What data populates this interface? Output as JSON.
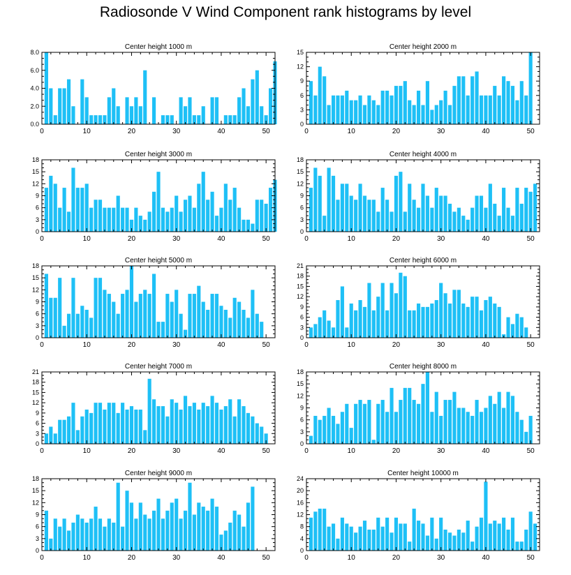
{
  "title": "Radiosonde V Wind Component rank histograms by level",
  "bar_color": "#1ec0f6",
  "chart_data": [
    {
      "type": "bar",
      "title": "Center height 1000 m",
      "xlabel": "",
      "ylabel": "",
      "xlim": [
        0,
        52
      ],
      "ylim": [
        0,
        8
      ],
      "xticks": [
        0,
        10,
        20,
        30,
        40,
        50
      ],
      "yticks": [
        0,
        2,
        4,
        6,
        8
      ],
      "ytick_labels": [
        "0.0",
        "2.0",
        "4.0",
        "6.0",
        "8.0"
      ],
      "values": [
        8,
        4,
        1,
        4,
        4,
        5,
        2,
        0,
        5,
        3,
        1,
        1,
        1,
        1,
        3,
        4,
        2,
        0,
        3,
        2,
        3,
        2,
        6,
        0,
        3,
        0,
        1,
        1,
        1,
        0,
        3,
        2,
        3,
        1,
        1,
        2,
        0,
        3,
        3,
        0,
        1,
        1,
        1,
        3,
        4,
        2,
        5,
        6,
        2,
        1,
        4,
        7
      ]
    },
    {
      "type": "bar",
      "title": "Center height 2000 m",
      "xlabel": "",
      "ylabel": "",
      "xlim": [
        0,
        52
      ],
      "ylim": [
        0,
        15
      ],
      "xticks": [
        0,
        10,
        20,
        30,
        40,
        50
      ],
      "yticks": [
        0,
        3,
        6,
        9,
        12,
        15
      ],
      "ytick_labels": [
        "0",
        "3",
        "6",
        "9",
        "12",
        "15"
      ],
      "values": [
        9,
        6,
        12,
        10,
        4,
        6,
        6,
        6,
        7,
        5,
        5,
        6,
        4,
        6,
        5,
        4,
        7,
        7,
        6,
        8,
        8,
        9,
        5,
        4,
        7,
        4,
        9,
        3,
        4,
        5,
        7,
        4,
        8,
        10,
        10,
        6,
        10,
        11,
        6,
        6,
        6,
        8,
        6,
        10,
        9,
        8,
        5,
        9,
        6,
        15
      ]
    },
    {
      "type": "bar",
      "title": "Center height 3000 m",
      "xlabel": "",
      "ylabel": "",
      "xlim": [
        0,
        52
      ],
      "ylim": [
        0,
        18
      ],
      "xticks": [
        0,
        10,
        20,
        30,
        40,
        50
      ],
      "yticks": [
        0,
        3,
        6,
        9,
        12,
        15,
        18
      ],
      "ytick_labels": [
        "0",
        "3",
        "6",
        "9",
        "12",
        "15",
        "18"
      ],
      "values": [
        11,
        14,
        12,
        6,
        11,
        5,
        16,
        11,
        11,
        12,
        6,
        8,
        8,
        6,
        6,
        6,
        9,
        6,
        6,
        3,
        6,
        4,
        3,
        5,
        10,
        15,
        6,
        5,
        6,
        9,
        5,
        8,
        9,
        6,
        12,
        15,
        8,
        10,
        4,
        6,
        12,
        8,
        11,
        6,
        3,
        3,
        2,
        8,
        8,
        7,
        11,
        13
      ]
    },
    {
      "type": "bar",
      "title": "Center height 4000 m",
      "xlabel": "",
      "ylabel": "",
      "xlim": [
        0,
        52
      ],
      "ylim": [
        0,
        18
      ],
      "xticks": [
        0,
        10,
        20,
        30,
        40,
        50
      ],
      "yticks": [
        0,
        3,
        6,
        9,
        12,
        15,
        18
      ],
      "ytick_labels": [
        "0",
        "3",
        "6",
        "9",
        "12",
        "15",
        "18"
      ],
      "values": [
        11,
        16,
        14,
        4,
        16,
        14,
        8,
        12,
        12,
        9,
        8,
        12,
        9,
        8,
        8,
        5,
        11,
        8,
        5,
        14,
        15,
        5,
        12,
        8,
        6,
        12,
        9,
        6,
        11,
        9,
        9,
        7,
        5,
        6,
        4,
        3,
        6,
        9,
        9,
        6,
        12,
        7,
        4,
        11,
        6,
        4,
        11,
        7,
        11,
        10,
        12
      ]
    },
    {
      "type": "bar",
      "title": "Center height 5000 m",
      "xlabel": "",
      "ylabel": "",
      "xlim": [
        0,
        52
      ],
      "ylim": [
        0,
        18
      ],
      "xticks": [
        0,
        10,
        20,
        30,
        40,
        50
      ],
      "yticks": [
        0,
        3,
        6,
        9,
        12,
        15,
        18
      ],
      "ytick_labels": [
        "0",
        "3",
        "6",
        "9",
        "12",
        "15",
        "18"
      ],
      "values": [
        16,
        10,
        10,
        15,
        3,
        6,
        15,
        6,
        8,
        7,
        5,
        15,
        15,
        12,
        11,
        9,
        6,
        11,
        12,
        18,
        9,
        11,
        12,
        11,
        16,
        4,
        4,
        11,
        9,
        12,
        6,
        2,
        11,
        11,
        13,
        9,
        7,
        11,
        11,
        8,
        7,
        5,
        10,
        9,
        7,
        5,
        12,
        6,
        4
      ]
    },
    {
      "type": "bar",
      "title": "Center height 6000 m",
      "xlabel": "",
      "ylabel": "",
      "xlim": [
        0,
        52
      ],
      "ylim": [
        0,
        21
      ],
      "xticks": [
        0,
        10,
        20,
        30,
        40,
        50
      ],
      "yticks": [
        0,
        3,
        6,
        9,
        12,
        15,
        18,
        21
      ],
      "ytick_labels": [
        "0",
        "3",
        "6",
        "9",
        "12",
        "15",
        "18",
        "21"
      ],
      "values": [
        3,
        4,
        6,
        8,
        5,
        3,
        11,
        15,
        3,
        10,
        8,
        11,
        9,
        16,
        8,
        12,
        16,
        8,
        16,
        13,
        19,
        18,
        8,
        8,
        10,
        9,
        9,
        10,
        11,
        16,
        13,
        10,
        14,
        14,
        10,
        9,
        12,
        12,
        8,
        11,
        12,
        10,
        9,
        1,
        6,
        4,
        7,
        6,
        3
      ]
    },
    {
      "type": "bar",
      "title": "Center height 7000 m",
      "xlabel": "",
      "ylabel": "",
      "xlim": [
        0,
        52
      ],
      "ylim": [
        0,
        21
      ],
      "xticks": [
        0,
        10,
        20,
        30,
        40,
        50
      ],
      "yticks": [
        0,
        3,
        6,
        9,
        12,
        15,
        18,
        21
      ],
      "ytick_labels": [
        "0",
        "3",
        "6",
        "9",
        "12",
        "15",
        "18",
        "21"
      ],
      "values": [
        3,
        5,
        3,
        7,
        7,
        8,
        12,
        4,
        8,
        10,
        9,
        12,
        12,
        10,
        12,
        12,
        9,
        12,
        10,
        11,
        10,
        10,
        4,
        19,
        13,
        11,
        11,
        8,
        13,
        12,
        10,
        14,
        11,
        12,
        10,
        12,
        11,
        14,
        12,
        10,
        11,
        13,
        8,
        13,
        11,
        9,
        8,
        6,
        5,
        3
      ]
    },
    {
      "type": "bar",
      "title": "Center height 8000 m",
      "xlabel": "",
      "ylabel": "",
      "xlim": [
        0,
        52
      ],
      "ylim": [
        0,
        18
      ],
      "xticks": [
        0,
        10,
        20,
        30,
        40,
        50
      ],
      "yticks": [
        0,
        3,
        6,
        9,
        12,
        15,
        18
      ],
      "ytick_labels": [
        "0",
        "3",
        "6",
        "9",
        "12",
        "15",
        "18"
      ],
      "values": [
        2,
        7,
        6,
        7,
        9,
        7,
        5,
        8,
        10,
        4,
        10,
        11,
        10,
        11,
        1,
        10,
        11,
        8,
        14,
        8,
        11,
        14,
        14,
        11,
        10,
        15,
        18,
        8,
        13,
        7,
        11,
        11,
        13,
        9,
        9,
        8,
        7,
        11,
        8,
        9,
        12,
        10,
        13,
        9,
        13,
        12,
        8,
        6,
        3,
        7
      ]
    },
    {
      "type": "bar",
      "title": "Center height 9000 m",
      "xlabel": "",
      "ylabel": "",
      "xlim": [
        0,
        52
      ],
      "ylim": [
        0,
        18
      ],
      "xticks": [
        0,
        10,
        20,
        30,
        40,
        50
      ],
      "yticks": [
        0,
        3,
        6,
        9,
        12,
        15,
        18
      ],
      "ytick_labels": [
        "0",
        "3",
        "6",
        "9",
        "12",
        "15",
        "18"
      ],
      "values": [
        10,
        3,
        8,
        6,
        8,
        5,
        7,
        9,
        8,
        7,
        8,
        11,
        8,
        6,
        8,
        7,
        17,
        6,
        15,
        12,
        8,
        12,
        9,
        8,
        10,
        13,
        8,
        10,
        12,
        13,
        8,
        10,
        17,
        9,
        12,
        11,
        10,
        13,
        11,
        4,
        5,
        7,
        10,
        9,
        6,
        12,
        16
      ]
    },
    {
      "type": "bar",
      "title": "Center height 10000 m",
      "xlabel": "",
      "ylabel": "",
      "xlim": [
        0,
        52
      ],
      "ylim": [
        0,
        24
      ],
      "xticks": [
        0,
        10,
        20,
        30,
        40,
        50
      ],
      "yticks": [
        0,
        4,
        8,
        12,
        16,
        20,
        24
      ],
      "ytick_labels": [
        "0",
        "4",
        "8",
        "12",
        "16",
        "20",
        "24"
      ],
      "values": [
        11,
        13,
        14,
        14,
        8,
        9,
        4,
        11,
        9,
        8,
        6,
        8,
        10,
        7,
        7,
        11,
        8,
        11,
        6,
        11,
        9,
        9,
        3,
        14,
        10,
        9,
        5,
        11,
        4,
        11,
        7,
        6,
        5,
        7,
        6,
        10,
        3,
        8,
        11,
        23,
        9,
        10,
        9,
        11,
        7,
        11,
        3,
        3,
        7,
        13,
        9
      ]
    }
  ]
}
